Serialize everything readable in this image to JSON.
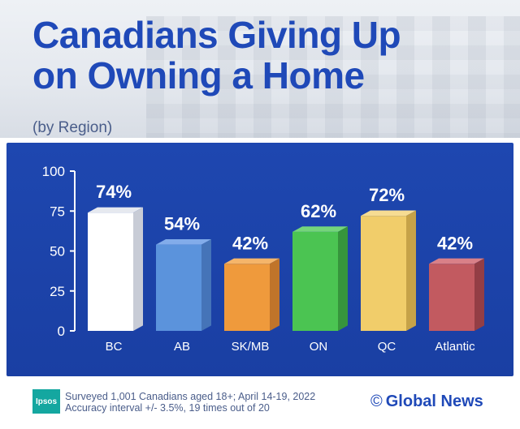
{
  "header": {
    "title_line1": "Canadians Giving Up",
    "title_line2": "on Owning a Home",
    "subtitle": "(by Region)"
  },
  "colors": {
    "title": "#1f49b8",
    "panel": "#1e47b0"
  },
  "chart_data": {
    "type": "bar",
    "title": "Canadians Giving Up on Owning a Home",
    "subtitle": "(by Region)",
    "categories": [
      "BC",
      "AB",
      "SK/MB",
      "ON",
      "QC",
      "Atlantic"
    ],
    "values": [
      74,
      54,
      42,
      62,
      72,
      42
    ],
    "data_labels": [
      "74%",
      "54%",
      "42%",
      "62%",
      "72%",
      "42%"
    ],
    "bar_colors": [
      "#ffffff",
      "#5b93dc",
      "#ef9a3c",
      "#4bc452",
      "#f1cd6a",
      "#c25a60"
    ],
    "bar_side_colors": [
      "#c8ccd6",
      "#4574b8",
      "#c0742a",
      "#36953c",
      "#c6a248",
      "#933e45"
    ],
    "bar_top_colors": [
      "#e6e9ef",
      "#82acea",
      "#f5b56a",
      "#74d57b",
      "#f6dc92",
      "#d98088"
    ],
    "ylim": [
      0,
      100
    ],
    "yticks": [
      0,
      25,
      50,
      75,
      100
    ],
    "xlabel": "",
    "ylabel": ""
  },
  "footer": {
    "logo": "Ipsos",
    "note_line1": "Surveyed 1,001 Canadians aged 18+; April 14-19, 2022",
    "note_line2": "Accuracy interval +/- 3.5%, 19 times out of 20",
    "copyright_symbol": "©",
    "brand": "Global News"
  }
}
